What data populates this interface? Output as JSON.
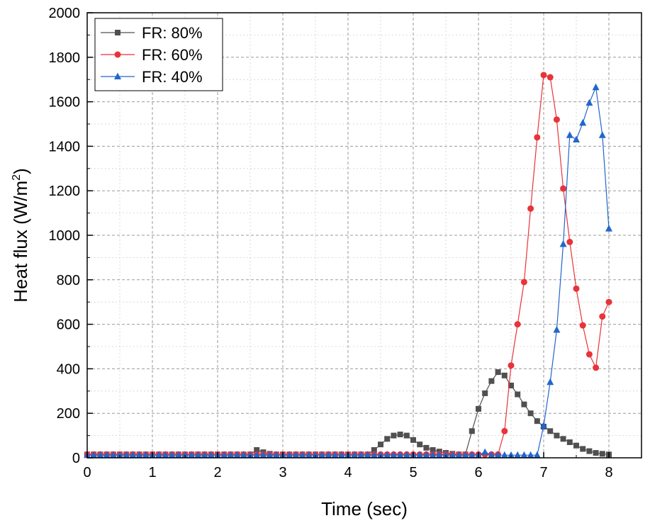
{
  "chart_data": {
    "type": "line",
    "title": "",
    "xlabel": "Time (sec)",
    "ylabel_main": "Heat flux (W/m",
    "ylabel_sup": "2",
    "ylabel_end": ")",
    "xlim": [
      0,
      8.5
    ],
    "ylim": [
      0,
      2000
    ],
    "xticks": [
      0,
      1,
      2,
      3,
      4,
      5,
      6,
      7,
      8
    ],
    "yticks": [
      0,
      200,
      400,
      600,
      800,
      1000,
      1200,
      1400,
      1600,
      1800,
      2000
    ],
    "grid": true,
    "legend_position": "top-left",
    "series": [
      {
        "name": "FR: 80%",
        "color": "#505050",
        "marker": "square",
        "x": [
          0.0,
          0.1,
          0.2,
          0.3,
          0.4,
          0.5,
          0.6,
          0.7,
          0.8,
          0.9,
          1.0,
          1.1,
          1.2,
          1.3,
          1.4,
          1.5,
          1.6,
          1.7,
          1.8,
          1.9,
          2.0,
          2.1,
          2.2,
          2.3,
          2.4,
          2.5,
          2.6,
          2.7,
          2.8,
          2.9,
          3.0,
          3.1,
          3.2,
          3.3,
          3.4,
          3.5,
          3.6,
          3.7,
          3.8,
          3.9,
          4.0,
          4.1,
          4.2,
          4.3,
          4.4,
          4.5,
          4.6,
          4.7,
          4.8,
          4.9,
          5.0,
          5.1,
          5.2,
          5.3,
          5.4,
          5.5,
          5.6,
          5.7,
          5.8,
          5.9,
          6.0,
          6.1,
          6.2,
          6.3,
          6.4,
          6.5,
          6.6,
          6.7,
          6.8,
          6.9,
          7.0,
          7.1,
          7.2,
          7.3,
          7.4,
          7.5,
          7.6,
          7.7,
          7.8,
          7.9,
          8.0
        ],
        "y": [
          15,
          15,
          15,
          15,
          15,
          15,
          15,
          15,
          15,
          15,
          15,
          15,
          15,
          15,
          15,
          15,
          15,
          15,
          15,
          15,
          15,
          15,
          15,
          15,
          15,
          15,
          35,
          25,
          18,
          15,
          15,
          15,
          15,
          15,
          15,
          15,
          15,
          15,
          15,
          15,
          15,
          15,
          15,
          15,
          35,
          60,
          85,
          100,
          105,
          100,
          80,
          60,
          45,
          35,
          28,
          22,
          18,
          15,
          15,
          120,
          220,
          290,
          345,
          385,
          370,
          325,
          285,
          240,
          200,
          165,
          140,
          120,
          100,
          85,
          70,
          55,
          40,
          30,
          22,
          18,
          15
        ],
        "marker_every": 1
      },
      {
        "name": "FR: 60%",
        "color": "#e8333a",
        "marker": "circle",
        "x": [
          0.0,
          0.1,
          0.2,
          0.3,
          0.4,
          0.5,
          0.6,
          0.7,
          0.8,
          0.9,
          1.0,
          1.1,
          1.2,
          1.3,
          1.4,
          1.5,
          1.6,
          1.7,
          1.8,
          1.9,
          2.0,
          2.1,
          2.2,
          2.3,
          2.4,
          2.5,
          2.6,
          2.7,
          2.8,
          2.9,
          3.0,
          3.1,
          3.2,
          3.3,
          3.4,
          3.5,
          3.6,
          3.7,
          3.8,
          3.9,
          4.0,
          4.1,
          4.2,
          4.3,
          4.4,
          4.5,
          4.6,
          4.7,
          4.8,
          4.9,
          5.0,
          5.1,
          5.2,
          5.3,
          5.4,
          5.5,
          5.6,
          5.7,
          5.8,
          5.9,
          6.0,
          6.1,
          6.2,
          6.3,
          6.4,
          6.5,
          6.6,
          6.7,
          6.8,
          6.9,
          7.0,
          7.1,
          7.2,
          7.3,
          7.4,
          7.5,
          7.6,
          7.7,
          7.8,
          7.9,
          8.0
        ],
        "y": [
          15,
          15,
          15,
          15,
          15,
          15,
          15,
          15,
          15,
          15,
          15,
          15,
          15,
          15,
          15,
          15,
          15,
          15,
          15,
          15,
          15,
          15,
          15,
          15,
          15,
          15,
          15,
          15,
          15,
          15,
          15,
          15,
          15,
          15,
          15,
          15,
          15,
          15,
          15,
          15,
          15,
          15,
          15,
          15,
          15,
          15,
          15,
          15,
          15,
          15,
          15,
          15,
          15,
          15,
          15,
          15,
          15,
          15,
          15,
          15,
          15,
          15,
          15,
          15,
          120,
          415,
          600,
          790,
          1120,
          1440,
          1720,
          1710,
          1520,
          1210,
          970,
          760,
          595,
          465,
          405,
          635,
          700
        ],
        "marker_every": 1
      },
      {
        "name": "FR: 40%",
        "color": "#2266cc",
        "marker": "triangle",
        "x": [
          0.0,
          0.1,
          0.2,
          0.3,
          0.4,
          0.5,
          0.6,
          0.7,
          0.8,
          0.9,
          1.0,
          1.1,
          1.2,
          1.3,
          1.4,
          1.5,
          1.6,
          1.7,
          1.8,
          1.9,
          2.0,
          2.1,
          2.2,
          2.3,
          2.4,
          2.5,
          2.6,
          2.7,
          2.8,
          2.9,
          3.0,
          3.1,
          3.2,
          3.3,
          3.4,
          3.5,
          3.6,
          3.7,
          3.8,
          3.9,
          4.0,
          4.1,
          4.2,
          4.3,
          4.4,
          4.5,
          4.6,
          4.7,
          4.8,
          4.9,
          5.0,
          5.1,
          5.2,
          5.3,
          5.4,
          5.5,
          5.6,
          5.7,
          5.8,
          5.9,
          6.0,
          6.1,
          6.2,
          6.3,
          6.4,
          6.5,
          6.6,
          6.7,
          6.8,
          6.9,
          7.0,
          7.1,
          7.2,
          7.3,
          7.4,
          7.5,
          7.6,
          7.7,
          7.8,
          7.9,
          8.0
        ],
        "y": [
          12,
          12,
          12,
          12,
          12,
          12,
          12,
          12,
          12,
          12,
          12,
          12,
          12,
          12,
          12,
          12,
          12,
          12,
          12,
          12,
          12,
          12,
          12,
          12,
          12,
          12,
          12,
          12,
          12,
          12,
          12,
          12,
          12,
          12,
          12,
          12,
          12,
          12,
          12,
          12,
          12,
          12,
          12,
          12,
          12,
          12,
          12,
          12,
          12,
          12,
          12,
          12,
          12,
          12,
          12,
          12,
          12,
          12,
          12,
          12,
          12,
          25,
          12,
          12,
          12,
          12,
          12,
          12,
          12,
          12,
          145,
          340,
          575,
          960,
          1450,
          1430,
          1505,
          1595,
          1665,
          1450,
          1030
        ],
        "marker_every": 1
      }
    ]
  }
}
